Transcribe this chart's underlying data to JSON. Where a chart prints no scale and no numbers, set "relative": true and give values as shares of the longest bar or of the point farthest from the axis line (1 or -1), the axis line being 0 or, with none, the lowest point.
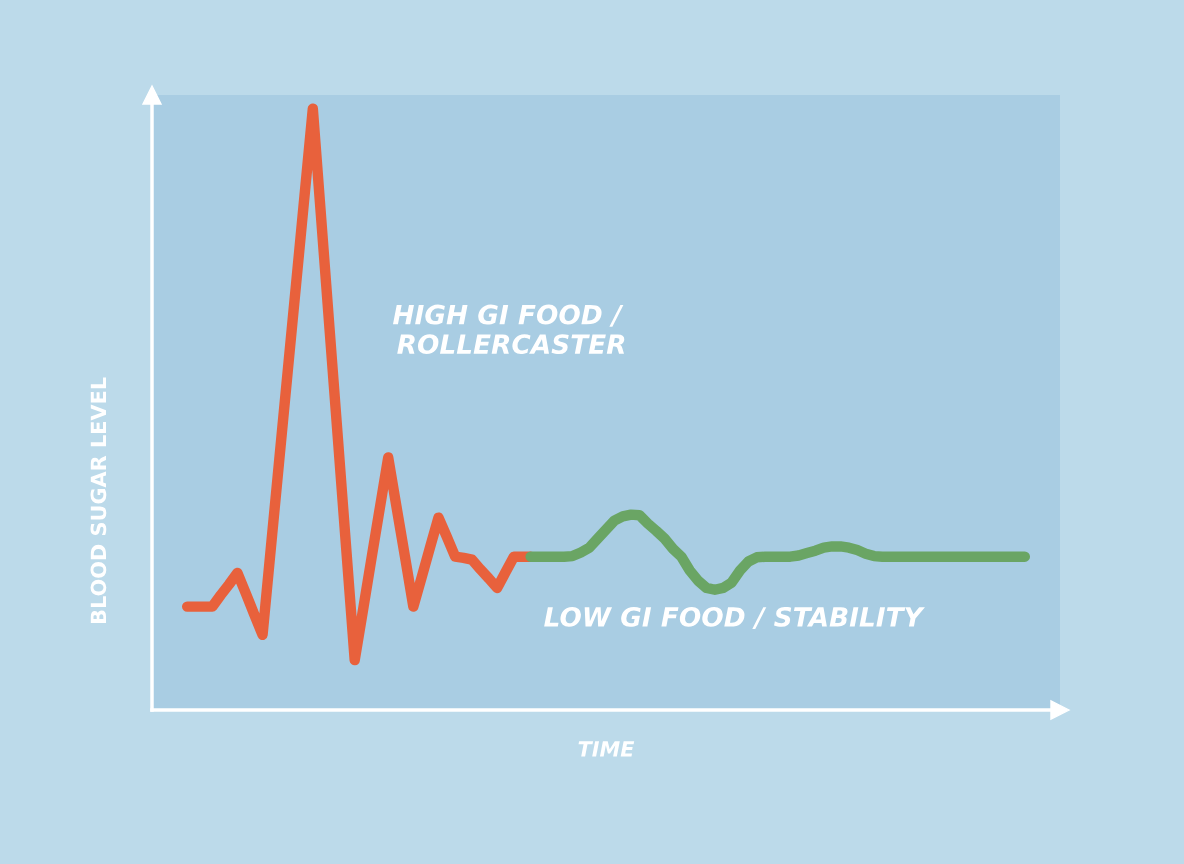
{
  "chart_data": {
    "type": "line",
    "relative": true,
    "xlabel": "TIME",
    "ylabel": "BLOOD SUGAR LEVEL",
    "legend": false,
    "marker": "none",
    "line_style": "solid",
    "categories": [
      null,
      null,
      null,
      null,
      null,
      null,
      null,
      null,
      null,
      null,
      null,
      null,
      null,
      null,
      null,
      null,
      null,
      null,
      null,
      null,
      null,
      null,
      null,
      null,
      null,
      null,
      null,
      null,
      null,
      null,
      null,
      null,
      null,
      null,
      null,
      null,
      null,
      null,
      null,
      null,
      null,
      null,
      null,
      null,
      null,
      null,
      null,
      null,
      null,
      null,
      null,
      null,
      null,
      null,
      null,
      null,
      null,
      null,
      null,
      null,
      null,
      null,
      null,
      null,
      null,
      null,
      null,
      null,
      null,
      null,
      null,
      null,
      null,
      null,
      null,
      null,
      null,
      null,
      null,
      null,
      null,
      null,
      null,
      null,
      null,
      null,
      null,
      null,
      null,
      null,
      null,
      null,
      null,
      null,
      null,
      null,
      null,
      null,
      null,
      null,
      null
    ],
    "series": [
      {
        "name": "HIGH GI FOOD /\n ROLLERCASTER",
        "color": "#e8613c",
        "values": [
          0.172,
          0.172,
          0.172,
          0.172,
          0.191,
          0.209,
          0.228,
          0.194,
          0.159,
          0.125,
          0.271,
          0.417,
          0.563,
          0.708,
          0.854,
          1,
          0.817,
          0.633,
          0.45,
          0.266,
          0.083,
          0.167,
          0.252,
          0.336,
          0.42,
          0.337,
          0.255,
          0.172,
          0.221,
          0.271,
          0.32,
          0.288,
          0.255,
          0.253,
          0.25,
          0.234,
          0.219,
          0.203,
          0.229,
          0.255,
          0.255,
          0.255,
          null,
          null,
          null,
          null,
          null,
          null,
          null,
          null,
          null,
          null,
          null,
          null,
          null,
          null,
          null,
          null,
          null,
          null,
          null,
          null,
          null,
          null,
          null,
          null,
          null,
          null,
          null,
          null,
          null,
          null,
          null,
          null,
          null,
          null,
          null,
          null,
          null,
          null,
          null,
          null,
          null,
          null,
          null,
          null,
          null,
          null,
          null,
          null,
          null,
          null,
          null,
          null,
          null,
          null,
          null,
          null,
          null,
          null,
          null
        ]
      },
      {
        "name": "LOW GI FOOD / STABILITY",
        "color": "#6aa564",
        "values": [
          null,
          null,
          null,
          null,
          null,
          null,
          null,
          null,
          null,
          null,
          null,
          null,
          null,
          null,
          null,
          null,
          null,
          null,
          null,
          null,
          null,
          null,
          null,
          null,
          null,
          null,
          null,
          null,
          null,
          null,
          null,
          null,
          null,
          null,
          null,
          null,
          null,
          null,
          null,
          null,
          null,
          0.255,
          0.255,
          0.255,
          0.255,
          0.255,
          0.256,
          0.262,
          0.27,
          0.285,
          0.3,
          0.315,
          0.322,
          0.325,
          0.324,
          0.31,
          0.298,
          0.285,
          0.268,
          0.255,
          0.232,
          0.215,
          0.203,
          0.2,
          0.203,
          0.212,
          0.232,
          0.247,
          0.254,
          0.255,
          0.255,
          0.255,
          0.255,
          0.257,
          0.261,
          0.265,
          0.27,
          0.272,
          0.272,
          0.27,
          0.266,
          0.26,
          0.256,
          0.255,
          0.255,
          0.255,
          0.255,
          0.255,
          0.255,
          0.255,
          0.255,
          0.255,
          0.255,
          0.255,
          0.255,
          0.255,
          0.255,
          0.255,
          0.255,
          0.255,
          0.255
        ]
      }
    ]
  }
}
